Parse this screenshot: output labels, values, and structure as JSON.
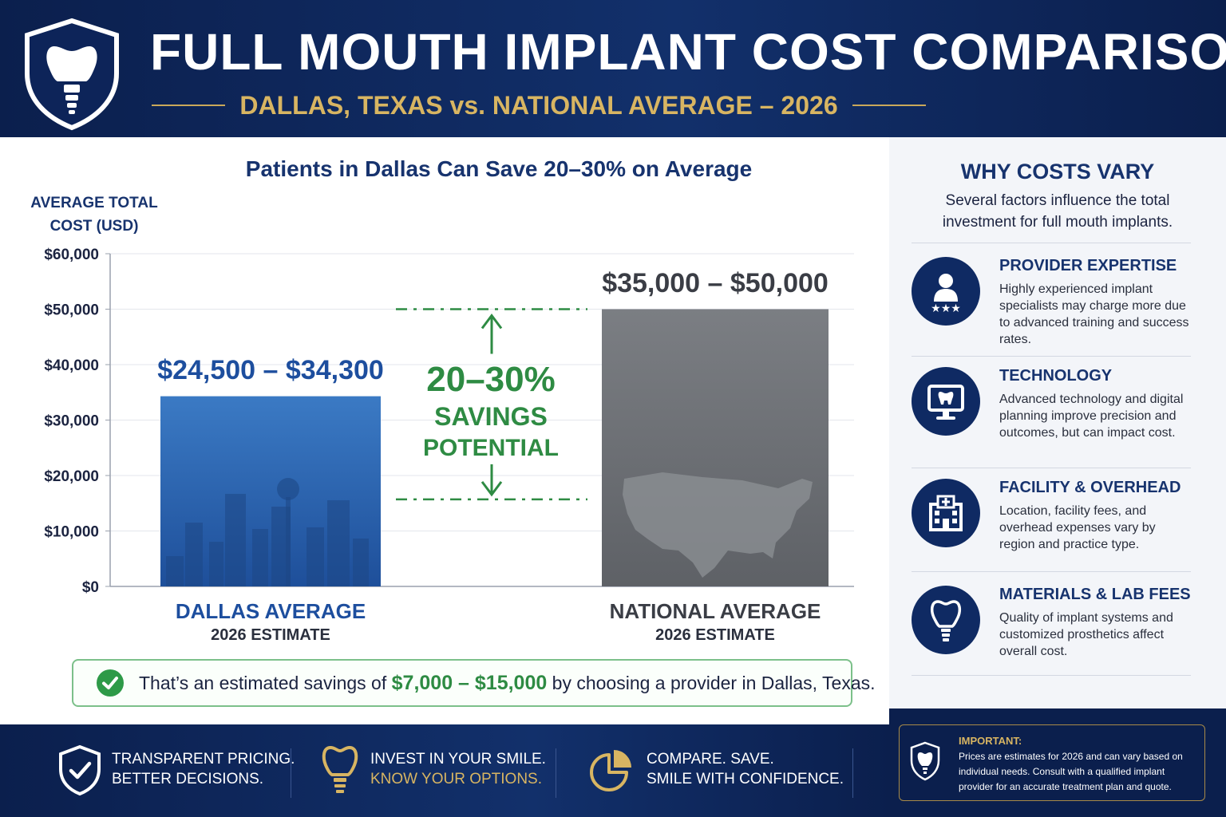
{
  "header": {
    "title": "FULL MOUTH IMPLANT COST COMPARISON",
    "subtitle": "DALLAS, TEXAS vs. NATIONAL AVERAGE – 2026"
  },
  "chart_heading": "Patients in Dallas Can Save 20–30% on Average",
  "chart_data": {
    "type": "bar",
    "ylabel": "AVERAGE TOTAL COST (USD)",
    "ylim": [
      0,
      60000
    ],
    "yticks": [
      0,
      10000,
      20000,
      30000,
      40000,
      50000,
      60000
    ],
    "ytick_labels": [
      "$0",
      "$10,000",
      "$20,000",
      "$30,000",
      "$40,000",
      "$50,000",
      "$60,000"
    ],
    "grid": true,
    "categories": [
      "DALLAS AVERAGE",
      "NATIONAL AVERAGE"
    ],
    "category_subtitles": [
      "2026 ESTIMATE",
      "2026 ESTIMATE"
    ],
    "bar_labels": [
      "$24,500 – $34,300",
      "$35,000 – $50,000"
    ],
    "values": [
      34300,
      50000
    ],
    "ranges": [
      [
        24500,
        34300
      ],
      [
        35000,
        50000
      ]
    ],
    "annotation": {
      "percent": "20–30%",
      "line1": "SAVINGS",
      "line2": "POTENTIAL",
      "upper_y": 50000,
      "lower_y": 15700
    },
    "colors": {
      "dallas": "#2f6db8",
      "national": "#6b6e73",
      "savings": "#2e8b43",
      "dallas_label": "#1d4e9e",
      "national_label": "#3a3d45"
    }
  },
  "banner": {
    "prefix": "That’s an estimated savings of ",
    "amount": "$7,000 – $15,000",
    "suffix": " by choosing a provider in Dallas, Texas."
  },
  "sidebar": {
    "title": "WHY COSTS VARY",
    "intro": "Several factors influence the total investment for full mouth implants.",
    "factors": [
      {
        "icon": "provider-stars-icon",
        "title": "PROVIDER EXPERTISE",
        "desc": "Highly experienced implant specialists may charge more due to advanced training and success rates."
      },
      {
        "icon": "monitor-tooth-icon",
        "title": "TECHNOLOGY",
        "desc": "Advanced technology and digital planning improve precision and outcomes, but can impact cost."
      },
      {
        "icon": "hospital-icon",
        "title": "FACILITY & OVERHEAD",
        "desc": "Location, facility fees, and overhead expenses vary by region and practice type."
      },
      {
        "icon": "tooth-implant-icon",
        "title": "MATERIALS & LAB FEES",
        "desc": "Quality of implant systems and customized prosthetics affect overall cost."
      }
    ]
  },
  "footer": {
    "items": [
      {
        "icon": "shield-check-icon",
        "line1": "TRANSPARENT PRICING.",
        "line2": "BETTER DECISIONS."
      },
      {
        "icon": "tooth-implant-icon",
        "line1": "INVEST IN YOUR SMILE.",
        "line2": "KNOW YOUR OPTIONS."
      },
      {
        "icon": "pie-chart-icon",
        "line1": "COMPARE. SAVE.",
        "line2": "SMILE WITH CONFIDENCE."
      }
    ]
  },
  "important": {
    "title": "IMPORTANT:",
    "text": "Prices are estimates for 2026 and can vary based on individual needs. Consult with a qualified implant provider for an accurate treatment plan and quote."
  }
}
